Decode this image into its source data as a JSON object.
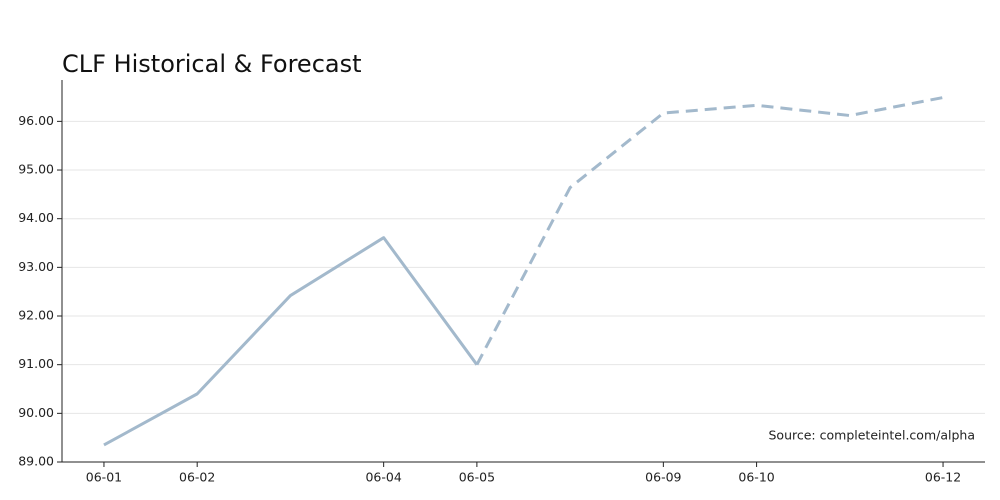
{
  "chart_data": {
    "type": "line",
    "title": "CLF Historical & Forecast",
    "categories": [
      "06-01",
      "06-02",
      null,
      "06-04",
      "06-05",
      null,
      "06-09",
      "06-10",
      null,
      "06-12"
    ],
    "series": [
      {
        "color": "#a3b9cc",
        "dashed": false,
        "values": [
          89.35,
          90.4,
          92.42,
          93.61,
          91.0,
          null,
          null,
          null,
          null,
          null
        ]
      },
      {
        "color": "#a3b9cc",
        "dashed": true,
        "values": [
          null,
          null,
          null,
          null,
          91.0,
          94.64,
          96.17,
          96.33,
          96.12,
          96.49
        ]
      }
    ],
    "ylim": [
      89,
      96.85
    ],
    "yticks": [
      {
        "value": 89,
        "label": "89.00"
      },
      {
        "value": 90,
        "label": "90.00"
      },
      {
        "value": 91,
        "label": "91.00"
      },
      {
        "value": 92,
        "label": "92.00"
      },
      {
        "value": 93,
        "label": "93.00"
      },
      {
        "value": 94,
        "label": "94.00"
      },
      {
        "value": 95,
        "label": "95.00"
      },
      {
        "value": 96,
        "label": "96.00"
      }
    ],
    "grid": true,
    "annotation": "Source: completeintel.com/alpha"
  }
}
